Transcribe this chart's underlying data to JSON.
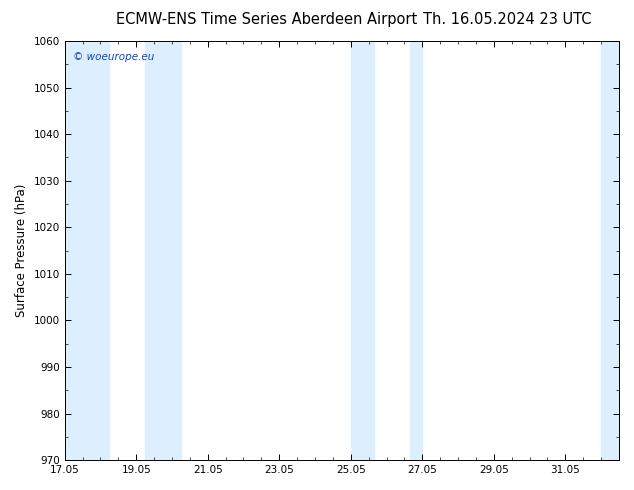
{
  "title_left": "ECMW-ENS Time Series Aberdeen Airport",
  "title_right": "Th. 16.05.2024 23 UTC",
  "ylabel": "Surface Pressure (hPa)",
  "ylim": [
    970,
    1060
  ],
  "yticks": [
    970,
    980,
    990,
    1000,
    1010,
    1020,
    1030,
    1040,
    1050,
    1060
  ],
  "xlim_start": 17.05,
  "xlim_end": 32.55,
  "xticks": [
    17.05,
    19.05,
    21.05,
    23.05,
    25.05,
    27.05,
    29.05,
    31.05
  ],
  "xticklabels": [
    "17.05",
    "19.05",
    "21.05",
    "23.05",
    "25.05",
    "27.05",
    "29.05",
    "31.05"
  ],
  "shaded_bands": [
    {
      "x_start": 17.05,
      "x_end": 18.3
    },
    {
      "x_start": 19.3,
      "x_end": 20.3
    },
    {
      "x_start": 25.05,
      "x_end": 25.7
    },
    {
      "x_start": 26.7,
      "x_end": 27.05
    },
    {
      "x_start": 32.05,
      "x_end": 32.55
    }
  ],
  "band_color": "#ddeeff",
  "bg_color": "#ffffff",
  "watermark_text": "© woeurope.eu",
  "watermark_color": "#1144bb",
  "title_fontsize": 10.5,
  "tick_fontsize": 7.5,
  "ylabel_fontsize": 8.5
}
